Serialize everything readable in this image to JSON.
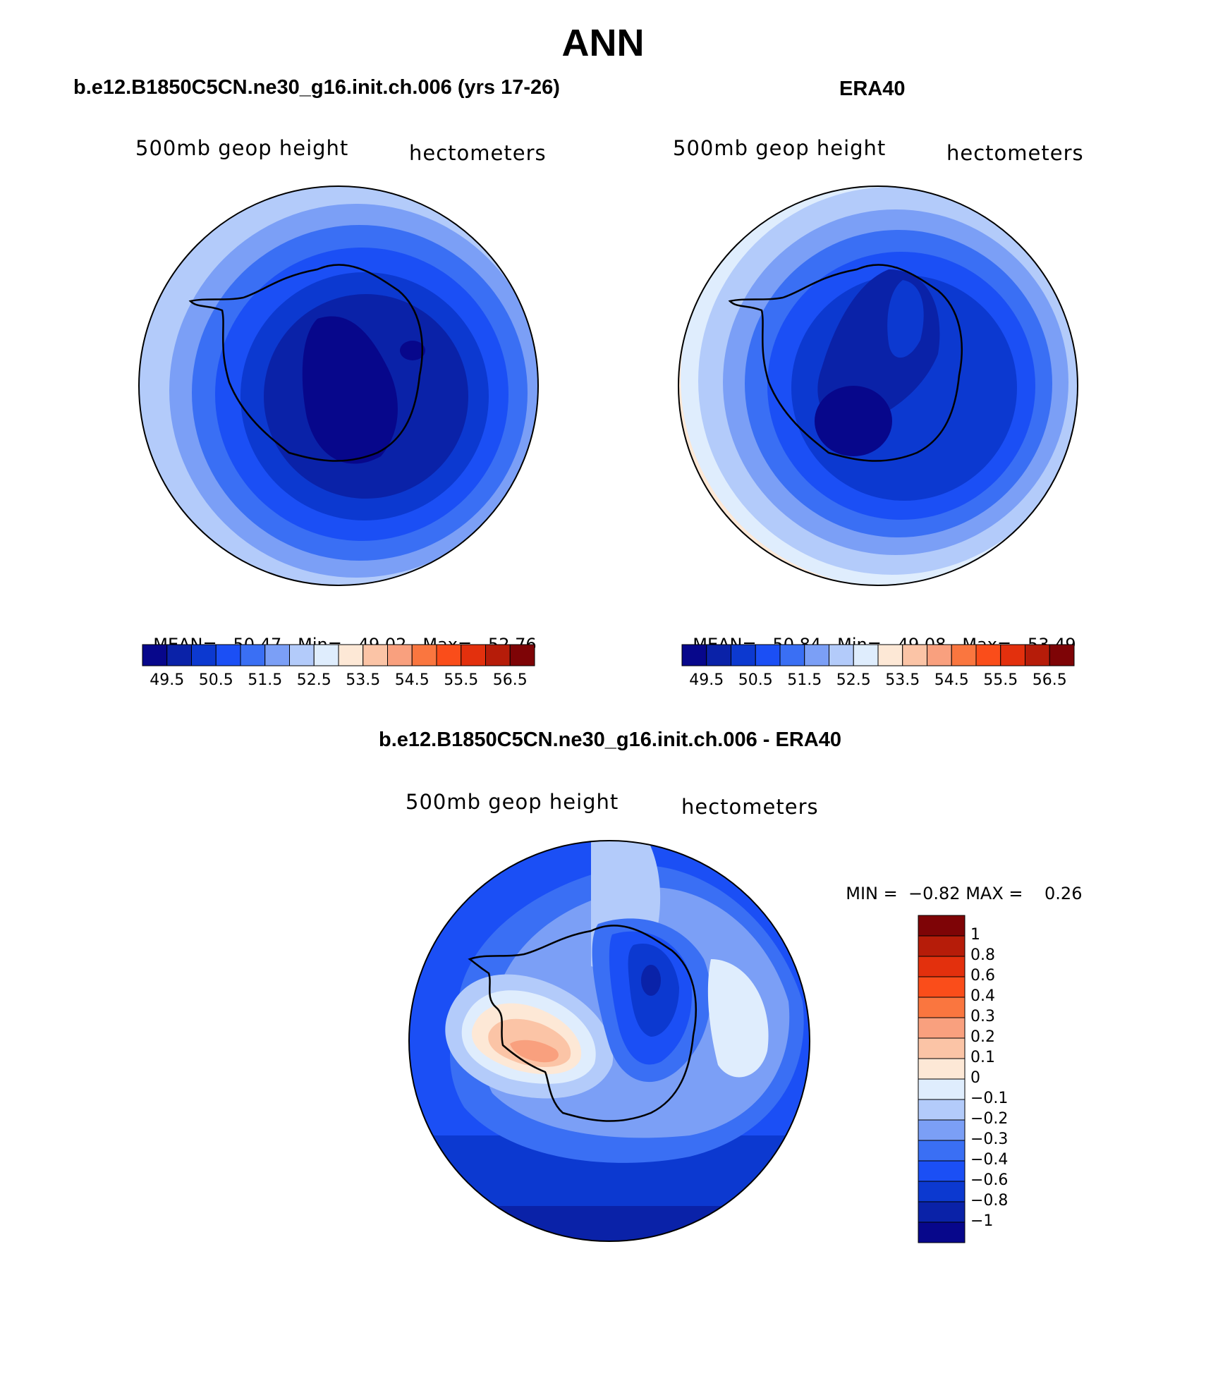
{
  "main_title": "ANN",
  "colors": {
    "abs_scale": [
      "#07078b",
      "#0a22a8",
      "#0c39d0",
      "#1b4ff5",
      "#3a6ff4",
      "#7b9ff6",
      "#b3cbfa",
      "#dfedfd",
      "#fde8d6",
      "#fbc4a6",
      "#f9a07e",
      "#fa763f",
      "#fa4d1a",
      "#e3300d",
      "#b61c09",
      "#7e0406"
    ],
    "diff_scale": [
      "#07078b",
      "#0a22a8",
      "#0c39d0",
      "#1b4ff5",
      "#3a6ff4",
      "#7b9ff6",
      "#b3cbfa",
      "#dfedfd",
      "#fde8d6",
      "#fbc4a6",
      "#f9a07e",
      "#fa763f",
      "#fa4d1a",
      "#e3300d",
      "#b61c09",
      "#7e0406"
    ]
  },
  "panels": [
    {
      "title": "b.e12.B1850C5CN.ne30_g16.init.ch.006 (yrs 17-26)",
      "variable": "500mb geop height",
      "units": "hectometers",
      "stats": {
        "mean_label": "MEAN=",
        "mean": "50.47",
        "min_label": "Min=",
        "min": "49.02",
        "max_label": "Max=",
        "max": "52.76"
      },
      "colorbar_ticks": [
        "49.5",
        "50.5",
        "51.5",
        "52.5",
        "53.5",
        "54.5",
        "55.5",
        "56.5"
      ]
    },
    {
      "title": "ERA40",
      "variable": "500mb geop height",
      "units": "hectometers",
      "stats": {
        "mean_label": "MEAN=",
        "mean": "50.84",
        "min_label": "Min=",
        "min": "49.08",
        "max_label": "Max=",
        "max": "53.49"
      },
      "colorbar_ticks": [
        "49.5",
        "50.5",
        "51.5",
        "52.5",
        "53.5",
        "54.5",
        "55.5",
        "56.5"
      ]
    }
  ],
  "difference": {
    "title": "b.e12.B1850C5CN.ne30_g16.init.ch.006 - ERA40",
    "variable": "500mb geop height",
    "units": "hectometers",
    "min_label": "MIN =",
    "min": "−0.82",
    "max_label": "MAX =",
    "max": "0.26",
    "colorbar_ticks": [
      "1",
      "0.8",
      "0.6",
      "0.4",
      "0.3",
      "0.2",
      "0.1",
      "0",
      "−0.1",
      "−0.2",
      "−0.3",
      "−0.4",
      "−0.6",
      "−0.8",
      "−1"
    ]
  }
}
